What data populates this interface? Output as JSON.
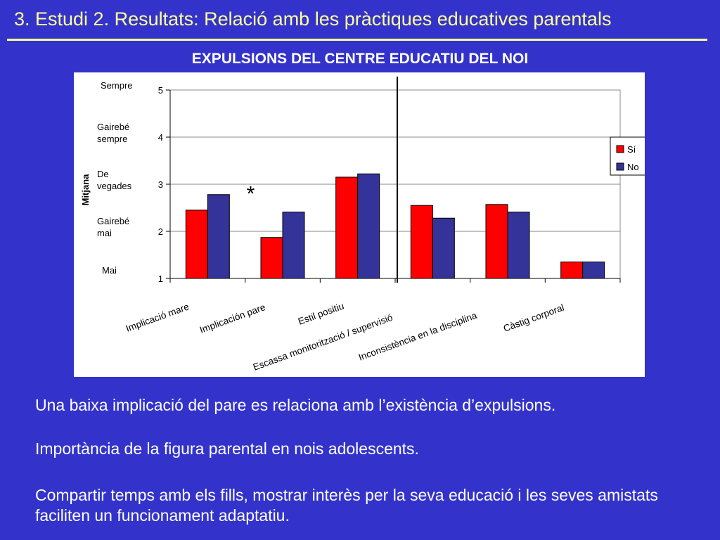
{
  "slide": {
    "title": "3. Estudi 2. Resultats: Relació amb les pràctiques educatives parentals",
    "chart_heading": "EXPULSIONS DEL CENTRE EDUCATIU DEL NOI",
    "paragraphs": [
      "Una baixa implicació del pare es relaciona amb l’existència d’expulsions.",
      "Importància de la figura parental en nois adolescents.",
      "Compartir temps amb els fills, mostrar interès per la seva educació i les seves amistats faciliten un funcionament adaptatiu."
    ]
  },
  "colors": {
    "background": "#3333cc",
    "title": "#ffff99",
    "series_si": "#ff0000",
    "series_no": "#333399"
  },
  "chart_data": {
    "type": "bar",
    "title": "EXPULSIONS DEL CENTRE EDUCATIU DEL NOI",
    "ylabel": "Mitjana",
    "xlabel": "",
    "ylim": [
      1,
      5
    ],
    "yticks": [
      1,
      2,
      3,
      4,
      5
    ],
    "scale_labels": [
      "Mai",
      "Gairebé mai",
      "De vegades",
      "Gairebé sempre",
      "Sempre"
    ],
    "categories": [
      "Implicació mare",
      "Implicación pare",
      "Estil positiu",
      "Escassa monitorització / supervisió",
      "Inconsistència en la disciplina",
      "Càstig corporal"
    ],
    "series": [
      {
        "name": "Sí",
        "values": [
          2.45,
          1.87,
          3.15,
          2.55,
          2.57,
          1.35
        ]
      },
      {
        "name": "No",
        "values": [
          2.78,
          2.41,
          3.22,
          2.28,
          2.41,
          1.35
        ]
      }
    ],
    "annotations": [
      {
        "text": "*",
        "category": "Implicación pare"
      }
    ],
    "grid": true,
    "legend": "right"
  }
}
